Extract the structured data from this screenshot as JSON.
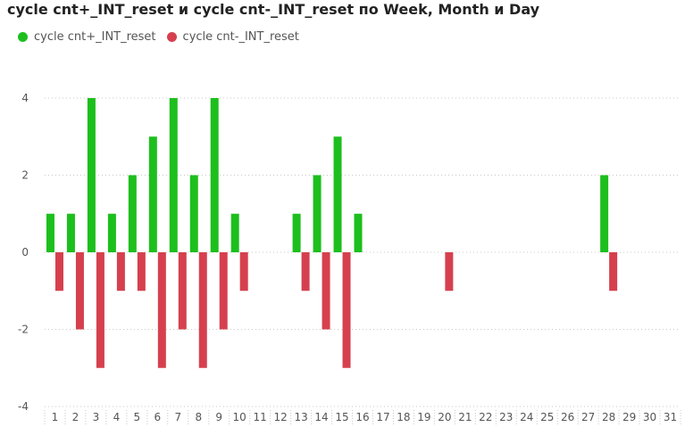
{
  "title": "cycle cnt+_INT_reset и cycle cnt-_INT_reset по Week, Month и Day",
  "colors": {
    "positive": "#1DBF1D",
    "negative": "#D6404E",
    "grid": "#c8c8c8",
    "text": "#555555"
  },
  "legend": [
    {
      "label": "cycle cnt+_INT_reset",
      "color": "#1DBF1D"
    },
    {
      "label": "cycle cnt-_INT_reset",
      "color": "#D6404E"
    }
  ],
  "chart_data": {
    "type": "bar",
    "categories": [
      "1",
      "2",
      "3",
      "4",
      "5",
      "6",
      "7",
      "8",
      "9",
      "10",
      "11",
      "12",
      "13",
      "14",
      "15",
      "16",
      "17",
      "18",
      "19",
      "20",
      "21",
      "22",
      "23",
      "24",
      "25",
      "26",
      "27",
      "28",
      "29",
      "30",
      "31"
    ],
    "series": [
      {
        "name": "cycle cnt+_INT_reset",
        "values": [
          1,
          1,
          4,
          1,
          2,
          3,
          4,
          2,
          4,
          1,
          0,
          0,
          1,
          2,
          3,
          1,
          0,
          0,
          0,
          0,
          0,
          0,
          0,
          0,
          0,
          0,
          0,
          2,
          0,
          0,
          0
        ]
      },
      {
        "name": "cycle cnt-_INT_reset",
        "values": [
          -1,
          -2,
          -3,
          -1,
          -1,
          -3,
          -2,
          -3,
          -2,
          -1,
          0,
          0,
          -1,
          -2,
          -3,
          0,
          0,
          0,
          0,
          -1,
          0,
          0,
          0,
          0,
          0,
          0,
          0,
          -1,
          0,
          0,
          0
        ]
      }
    ],
    "yticks": [
      "4",
      "2",
      "0",
      "-2",
      "-4"
    ],
    "ylim": [
      -4,
      4
    ],
    "grid": true,
    "legend_position": "top-left"
  }
}
